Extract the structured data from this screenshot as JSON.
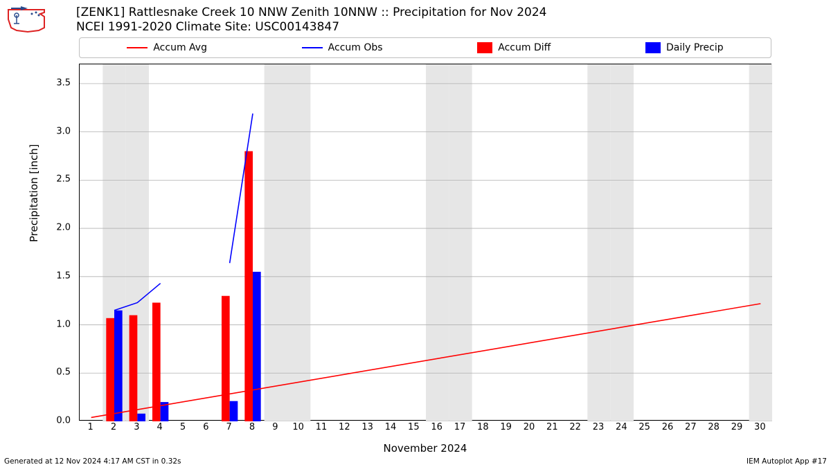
{
  "title_line1": "[ZENK1] Rattlesnake Creek 10 NNW Zenith 10NNW :: Precipitation for Nov 2024",
  "title_line2": "NCEI 1991-2020 Climate Site: USC00143847",
  "ylabel": "Precipitation [inch]",
  "xlabel": "November 2024",
  "footer_left": "Generated at 12 Nov 2024 4:17 AM CST in 0.32s",
  "footer_right": "IEM Autoplot App #17",
  "legend": {
    "accum_avg": "Accum Avg",
    "accum_obs": "Accum Obs",
    "accum_diff": "Accum Diff",
    "daily_precip": "Daily Precip"
  },
  "colors": {
    "accum_avg": "#ff0000",
    "accum_obs": "#0000ff",
    "accum_diff": "#ff0000",
    "daily_precip": "#0000ff",
    "grid": "#b0b0b0",
    "weekend_band": "#e6e6e6",
    "axis": "#000000",
    "background": "#ffffff",
    "logo_red": "#d22",
    "logo_blue": "#2a4b8d"
  },
  "chart": {
    "type": "bar+line",
    "xlim": [
      0.5,
      30.5
    ],
    "ylim": [
      0.0,
      3.7
    ],
    "xtick_step": 1,
    "xtick_labels": [
      "1",
      "2",
      "3",
      "4",
      "5",
      "6",
      "7",
      "8",
      "9",
      "10",
      "11",
      "12",
      "13",
      "14",
      "15",
      "16",
      "17",
      "18",
      "19",
      "20",
      "21",
      "22",
      "23",
      "24",
      "25",
      "26",
      "27",
      "28",
      "29",
      "30"
    ],
    "ytick_step": 0.5,
    "ytick_labels": [
      "0.0",
      "0.5",
      "1.0",
      "1.5",
      "2.0",
      "2.5",
      "3.0",
      "3.5"
    ],
    "grid_on": true,
    "bar_width": 0.35,
    "line_width": 1.6,
    "weekend_days": [
      2,
      3,
      9,
      10,
      16,
      17,
      23,
      24,
      30
    ],
    "accum_diff": {
      "2": 1.07,
      "3": 1.1,
      "4": 1.23,
      "7": 1.3,
      "8": 2.8
    },
    "daily_precip": {
      "2": 1.15,
      "3": 0.08,
      "4": 0.2,
      "7": 0.21,
      "8": 1.55
    },
    "accum_avg": [
      [
        1,
        0.04
      ],
      [
        30,
        1.22
      ]
    ],
    "accum_obs_seg1": [
      [
        2,
        1.15
      ],
      [
        3,
        1.23
      ],
      [
        4,
        1.43
      ]
    ],
    "accum_obs_seg2": [
      [
        7,
        1.64
      ],
      [
        8,
        3.19
      ]
    ]
  }
}
